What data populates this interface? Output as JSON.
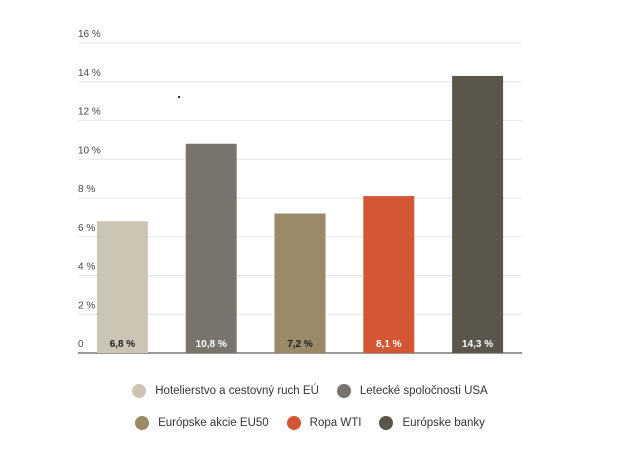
{
  "chart_data": {
    "type": "bar",
    "categories": [
      "Hotelierstvo a cestovný ruch EÚ",
      "Letecké spoločnosti USA",
      "Európske akcie EU50",
      "Ropa WTI",
      "Európske banky"
    ],
    "values": [
      6.8,
      10.8,
      7.2,
      8.1,
      14.3
    ],
    "value_labels": [
      "6,8 %",
      "10,8 %",
      "7,2 %",
      "8,1 %",
      "14,3 %"
    ],
    "colors": [
      "#cdc5b4",
      "#78746d",
      "#9a8a67",
      "#d35735",
      "#5b564c"
    ],
    "label_colors": [
      "#222222",
      "#ffffff",
      "#222222",
      "#ffffff",
      "#ffffff"
    ],
    "y_ticks": [
      0,
      2,
      4,
      6,
      8,
      10,
      12,
      14,
      16
    ],
    "y_tick_labels": [
      "0",
      "2 %",
      "4 %",
      "6 %",
      "8 %",
      "10 %",
      "12 %",
      "14 %",
      "16 %"
    ],
    "ylim": [
      0,
      16
    ],
    "grid": true,
    "title": "",
    "xlabel": "",
    "ylabel": "",
    "legend_position": "bottom"
  }
}
